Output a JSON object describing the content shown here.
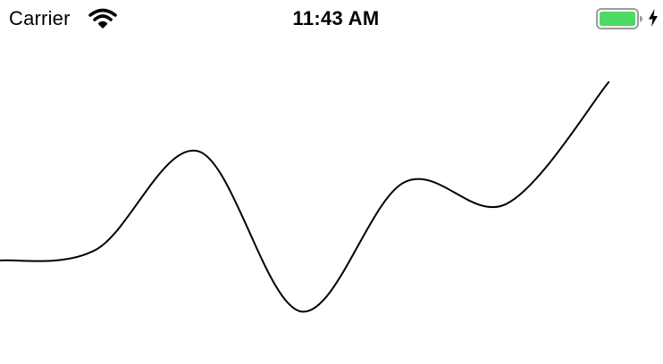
{
  "status_bar": {
    "carrier": "Carrier",
    "time": "11:43 AM",
    "icons": {
      "wifi": "wifi-icon",
      "battery": "battery-icon",
      "charging": "charging-bolt-icon"
    },
    "battery_color": "#4cd964"
  },
  "chart_data": {
    "type": "line",
    "title": "",
    "xlabel": "",
    "ylabel": "",
    "grid": false,
    "legend": "none",
    "line_color": "#000000",
    "smooth": true,
    "x": [
      0,
      1,
      2,
      3,
      4,
      5
    ],
    "series": [
      {
        "values": [
          3.3,
          7.4,
          0.7,
          6.1,
          5.2,
          10.3
        ]
      }
    ],
    "xlim": [
      -0.94,
      5.53
    ],
    "ylim": [
      0,
      10.6
    ]
  }
}
